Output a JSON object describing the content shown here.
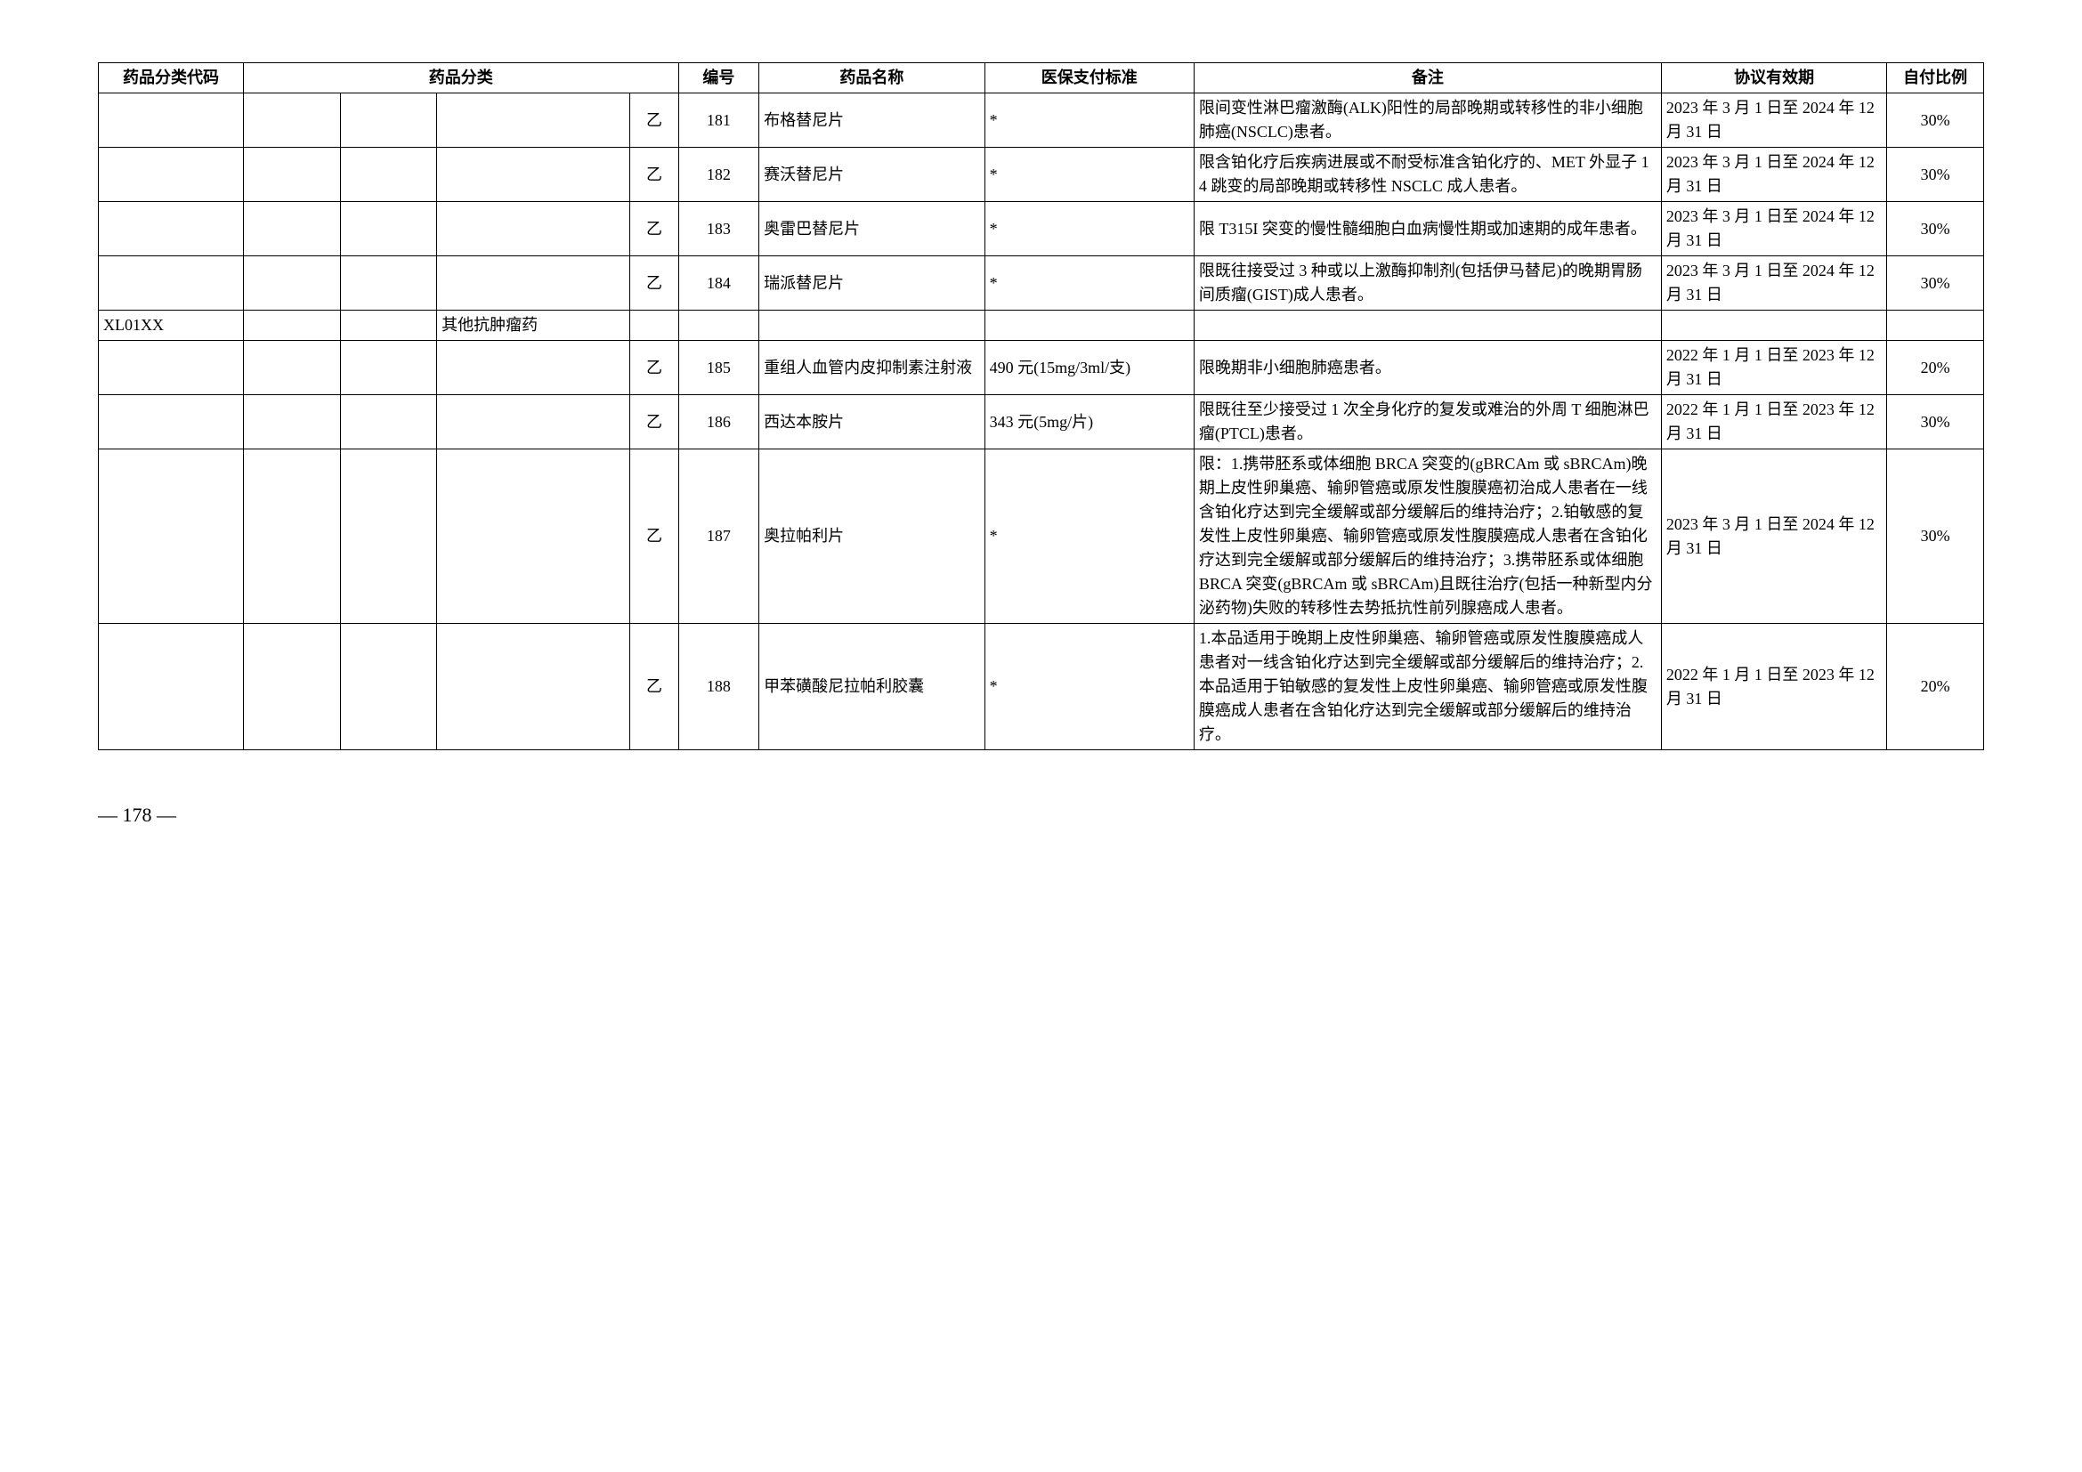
{
  "headers": {
    "code": "药品分类代码",
    "category": "药品分类",
    "num": "编号",
    "name": "药品名称",
    "standard": "医保支付标准",
    "remark": "备注",
    "valid": "协议有效期",
    "ratio": "自付比例"
  },
  "rows": [
    {
      "code": "",
      "cat1": "",
      "cat2": "",
      "cat3": "",
      "cat4": "乙",
      "num": "181",
      "name": "布格替尼片",
      "standard": "*",
      "remark": "限间变性淋巴瘤激酶(ALK)阳性的局部晚期或转移性的非小细胞肺癌(NSCLC)患者。",
      "valid": "2023 年 3 月 1 日至 2024 年 12 月 31 日",
      "ratio": "30%"
    },
    {
      "code": "",
      "cat1": "",
      "cat2": "",
      "cat3": "",
      "cat4": "乙",
      "num": "182",
      "name": "赛沃替尼片",
      "standard": "*",
      "remark": "限含铂化疗后疾病进展或不耐受标准含铂化疗的、MET 外显子 14 跳变的局部晚期或转移性 NSCLC 成人患者。",
      "valid": "2023 年 3 月 1 日至 2024 年 12 月 31 日",
      "ratio": "30%"
    },
    {
      "code": "",
      "cat1": "",
      "cat2": "",
      "cat3": "",
      "cat4": "乙",
      "num": "183",
      "name": "奥雷巴替尼片",
      "standard": "*",
      "remark": "限 T315I 突变的慢性髓细胞白血病慢性期或加速期的成年患者。",
      "valid": "2023 年 3 月 1 日至 2024 年 12 月 31 日",
      "ratio": "30%"
    },
    {
      "code": "",
      "cat1": "",
      "cat2": "",
      "cat3": "",
      "cat4": "乙",
      "num": "184",
      "name": "瑞派替尼片",
      "standard": "*",
      "remark": "限既往接受过 3 种或以上激酶抑制剂(包括伊马替尼)的晚期胃肠间质瘤(GIST)成人患者。",
      "valid": "2023 年 3 月 1 日至 2024 年 12 月 31 日",
      "ratio": "30%"
    },
    {
      "code": "XL01XX",
      "cat1": "",
      "cat2": "",
      "cat3": "其他抗肿瘤药",
      "cat4": "",
      "num": "",
      "name": "",
      "standard": "",
      "remark": "",
      "valid": "",
      "ratio": ""
    },
    {
      "code": "",
      "cat1": "",
      "cat2": "",
      "cat3": "",
      "cat4": "乙",
      "num": "185",
      "name": "重组人血管内皮抑制素注射液",
      "standard": "490 元(15mg/3ml/支)",
      "remark": "限晚期非小细胞肺癌患者。",
      "valid": "2022 年 1 月 1 日至 2023 年 12 月 31 日",
      "ratio": "20%"
    },
    {
      "code": "",
      "cat1": "",
      "cat2": "",
      "cat3": "",
      "cat4": "乙",
      "num": "186",
      "name": "西达本胺片",
      "standard": "343 元(5mg/片)",
      "remark": "限既往至少接受过 1 次全身化疗的复发或难治的外周 T 细胞淋巴瘤(PTCL)患者。",
      "valid": "2022 年 1 月 1 日至 2023 年 12 月 31 日",
      "ratio": "30%"
    },
    {
      "code": "",
      "cat1": "",
      "cat2": "",
      "cat3": "",
      "cat4": "乙",
      "num": "187",
      "name": "奥拉帕利片",
      "standard": "*",
      "remark": "限：1.携带胚系或体细胞 BRCA 突变的(gBRCAm 或 sBRCAm)晚期上皮性卵巢癌、输卵管癌或原发性腹膜癌初治成人患者在一线含铂化疗达到完全缓解或部分缓解后的维持治疗；2.铂敏感的复发性上皮性卵巢癌、输卵管癌或原发性腹膜癌成人患者在含铂化疗达到完全缓解或部分缓解后的维持治疗；3.携带胚系或体细胞 BRCA 突变(gBRCAm 或 sBRCAm)且既往治疗(包括一种新型内分泌药物)失败的转移性去势抵抗性前列腺癌成人患者。",
      "valid": "2023 年 3 月 1 日至 2024 年 12 月 31 日",
      "ratio": "30%"
    },
    {
      "code": "",
      "cat1": "",
      "cat2": "",
      "cat3": "",
      "cat4": "乙",
      "num": "188",
      "name": "甲苯磺酸尼拉帕利胶囊",
      "standard": "*",
      "remark": "1.本品适用于晚期上皮性卵巢癌、输卵管癌或原发性腹膜癌成人患者对一线含铂化疗达到完全缓解或部分缓解后的维持治疗；2.本品适用于铂敏感的复发性上皮性卵巢癌、输卵管癌或原发性腹膜癌成人患者在含铂化疗达到完全缓解或部分缓解后的维持治疗。",
      "valid": "2022 年 1 月 1 日至 2023 年 12 月 31 日",
      "ratio": "20%"
    }
  ],
  "pageNumber": "— 178 —"
}
